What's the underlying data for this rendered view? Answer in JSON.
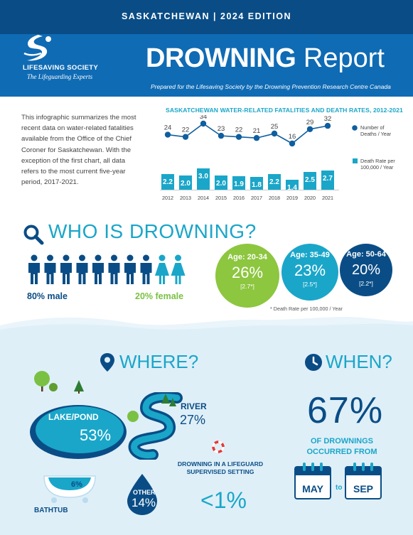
{
  "header": {
    "edition": "SASKATCHEWAN  |  2024 EDITION",
    "brand_name": "LIFESAVING SOCIETY",
    "brand_tagline": "The Lifeguarding Experts",
    "title_bold": "DROWNING",
    "title_light": "Report",
    "subtitle": "Prepared for the Lifesaving Society by the Drowning Prevention Research Centre Canada"
  },
  "intro": "This infographic summarizes the most recent data on water-related fatalities available from the Office of the Chief Coroner for Saskatchewan. With the exception of the first chart, all data refers to the most current five-year period, 2017-2021.",
  "chart_data": {
    "type": "bar",
    "title": "SASKATCHEWAN WATER-RELATED FATALITIES AND DEATH RATES, 2012-2021",
    "categories": [
      "2012",
      "2013",
      "2014",
      "2015",
      "2016",
      "2017",
      "2018",
      "2019",
      "2020",
      "2021"
    ],
    "series": [
      {
        "name": "Number of Deaths / Year",
        "type": "line",
        "values": [
          24,
          22,
          34,
          23,
          22,
          21,
          25,
          16,
          29,
          32
        ]
      },
      {
        "name": "Death Rate per 100,000 / Year",
        "type": "bar",
        "values": [
          2.2,
          2.0,
          3.0,
          2.0,
          1.9,
          1.8,
          2.2,
          1.4,
          2.5,
          2.7
        ]
      }
    ],
    "legend": "right",
    "colors": {
      "line": "#0f5fa0",
      "bar": "#1aa6c9"
    }
  },
  "who": {
    "title": "WHO IS DROWNING?",
    "male_label": "80% male",
    "female_label": "20% female",
    "male_count": 8,
    "female_count": 2,
    "age_groups": [
      {
        "age": "Age: 20-34",
        "pct": "26%",
        "rate": "[2.7*]",
        "color": "#8dc63f"
      },
      {
        "age": "Age: 35-49",
        "pct": "23%",
        "rate": "[2.5*]",
        "color": "#1aa6c9"
      },
      {
        "age": "Age: 50-64",
        "pct": "20%",
        "rate": "[2.2*]",
        "color": "#0a4d86"
      }
    ],
    "footnote": "* Death Rate per 100,000 / Year"
  },
  "where": {
    "title": "WHERE?",
    "lake_label": "LAKE/POND",
    "lake_pct": "53%",
    "river_label": "RIVER",
    "river_pct": "27%",
    "bathtub_label": "BATHTUB",
    "bathtub_pct": "6%",
    "other_label": "OTHER",
    "other_pct": "14%",
    "guard_label": "DROWNING IN A LIFEGUARD SUPERVISED SETTING",
    "guard_pct": "<1%"
  },
  "when": {
    "title": "WHEN?",
    "pct": "67%",
    "sub": "OF DROWNINGS OCCURRED FROM",
    "from": "MAY",
    "to_word": "to",
    "to": "SEP"
  },
  "icons": [
    "search-icon",
    "map-pin-icon",
    "clock-icon",
    "lifebuoy-icon",
    "calendar-icon",
    "person-icon",
    "tree-icon",
    "water-drop-icon",
    "bathtub-icon"
  ]
}
